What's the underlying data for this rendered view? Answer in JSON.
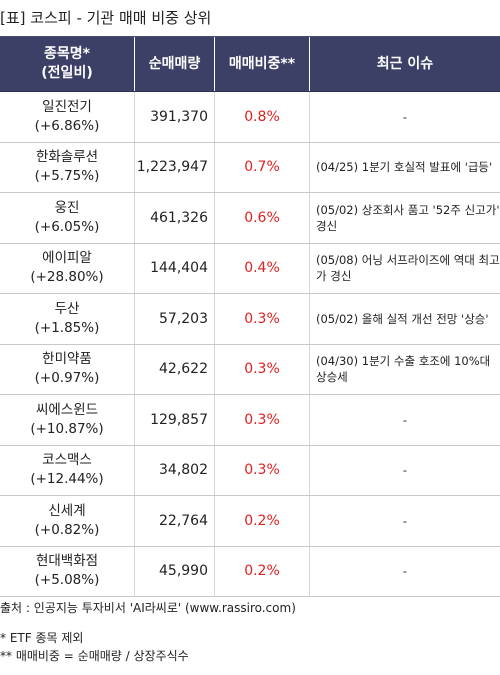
{
  "title": "[표] 코스피 - 기관 매매 비중 상위",
  "header": {
    "name_line1": "종목명*",
    "name_line2": "(전일비)",
    "net_volume": "순매매량",
    "trade_ratio": "매매비중**",
    "recent_issue": "최근 이슈"
  },
  "rows": [
    {
      "name": "일진전기",
      "change": "(+6.86%)",
      "volume": "391,370",
      "ratio": "0.8%",
      "issue": "-"
    },
    {
      "name": "한화솔루션",
      "change": "(+5.75%)",
      "volume": "1,223,947",
      "ratio": "0.7%",
      "issue": "(04/25) 1분기 호실적 발표에 '급등'"
    },
    {
      "name": "웅진",
      "change": "(+6.05%)",
      "volume": "461,326",
      "ratio": "0.6%",
      "issue": "(05/02) 상조회사 품고 '52주 신고가' 경신"
    },
    {
      "name": "에이피알",
      "change": "(+28.80%)",
      "volume": "144,404",
      "ratio": "0.4%",
      "issue": "(05/08) 어닝 서프라이즈에 역대 최고가 경신"
    },
    {
      "name": "두산",
      "change": "(+1.85%)",
      "volume": "57,203",
      "ratio": "0.3%",
      "issue": "(05/02) 올해 실적 개선 전망 '상승'"
    },
    {
      "name": "한미약품",
      "change": "(+0.97%)",
      "volume": "42,622",
      "ratio": "0.3%",
      "issue": "(04/30) 1분기 수출 호조에 10%대 상승세"
    },
    {
      "name": "씨에스윈드",
      "change": "(+10.87%)",
      "volume": "129,857",
      "ratio": "0.3%",
      "issue": "-"
    },
    {
      "name": "코스맥스",
      "change": "(+12.44%)",
      "volume": "34,802",
      "ratio": "0.3%",
      "issue": "-"
    },
    {
      "name": "신세계",
      "change": "(+0.82%)",
      "volume": "22,764",
      "ratio": "0.2%",
      "issue": "-"
    },
    {
      "name": "현대백화점",
      "change": "(+5.08%)",
      "volume": "45,990",
      "ratio": "0.2%",
      "issue": "-"
    }
  ],
  "source": "출처 : 인공지능 투자비서 'AI라씨로' (www.rassiro.com)",
  "notes": [
    "* ETF 종목 제외",
    "** 매매비중 = 순매매량 / 상장주식수"
  ],
  "colors": {
    "header_bg": "#3c3f66",
    "ratio_text": "#e02020"
  }
}
